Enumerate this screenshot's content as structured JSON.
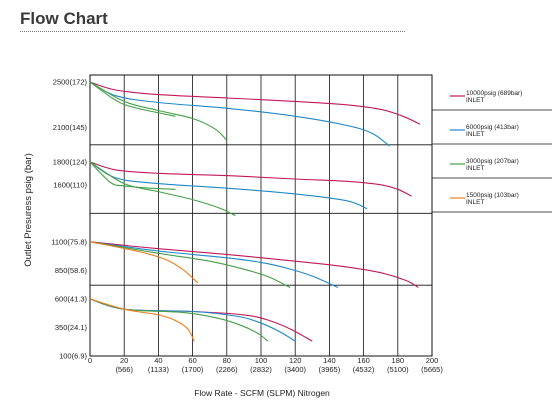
{
  "title": "Flow Chart",
  "chart_data": {
    "type": "line",
    "xlabel": "Flow Rate - SCFM (SLPM) Nitrogen",
    "ylabel": "Outlet Presuress psig (bar)",
    "xlim": [
      0,
      200
    ],
    "x_ticks": [
      {
        "v": 0,
        "label": "0",
        "sub": ""
      },
      {
        "v": 20,
        "label": "20",
        "sub": "(566)"
      },
      {
        "v": 40,
        "label": "40",
        "sub": "(1133)"
      },
      {
        "v": 60,
        "label": "60",
        "sub": "(1700)"
      },
      {
        "v": 80,
        "label": "80",
        "sub": "(2266)"
      },
      {
        "v": 100,
        "label": "100",
        "sub": "(2832)"
      },
      {
        "v": 120,
        "label": "120",
        "sub": "(3400)"
      },
      {
        "v": 140,
        "label": "140",
        "sub": "(3965)"
      },
      {
        "v": 160,
        "label": "160",
        "sub": "(4532)"
      },
      {
        "v": 180,
        "label": "180",
        "sub": "(5100)"
      },
      {
        "v": 200,
        "label": "200",
        "sub": "(5665)"
      }
    ],
    "y_ticks": [
      {
        "v": 2500,
        "label": "2500(172)"
      },
      {
        "v": 2100,
        "label": "2100(145)"
      },
      {
        "v": 1800,
        "label": "1800(124)"
      },
      {
        "v": 1600,
        "label": "1600(110)"
      },
      {
        "v": 1100,
        "label": "1100(75.8)"
      },
      {
        "v": 850,
        "label": "850(58.6)"
      },
      {
        "v": 600,
        "label": "600(41.3)"
      },
      {
        "v": 350,
        "label": "350(24.1)"
      },
      {
        "v": 100,
        "label": "100(6.9)"
      }
    ],
    "legend": [
      {
        "label": "10000psig (689bar)",
        "sub": "INLET",
        "color": "#c2185b"
      },
      {
        "label": "6000psig (413bar)",
        "sub": "INLET",
        "color": "#1e88c8"
      },
      {
        "label": "3000psig (207bar)",
        "sub": "INLET",
        "color": "#43a047"
      },
      {
        "label": "1500psig (103bar)",
        "sub": "INLET",
        "color": "#ef7d1a"
      }
    ],
    "series": [
      {
        "color": "#c2185b",
        "x": [
          0,
          15,
          40,
          80,
          120,
          150,
          170,
          183,
          193
        ],
        "y": [
          2500,
          2430,
          2390,
          2360,
          2330,
          2300,
          2260,
          2200,
          2130
        ]
      },
      {
        "color": "#1e88c8",
        "x": [
          0,
          15,
          40,
          80,
          120,
          150,
          165,
          175
        ],
        "y": [
          2500,
          2380,
          2320,
          2270,
          2200,
          2120,
          2050,
          1940
        ]
      },
      {
        "color": "#43a047",
        "x": [
          0,
          20,
          40,
          60,
          73,
          80
        ],
        "y": [
          2500,
          2330,
          2250,
          2180,
          2090,
          1990
        ]
      },
      {
        "color": "#43a047",
        "x": [
          0,
          15,
          25,
          40,
          50
        ],
        "y": [
          2500,
          2340,
          2280,
          2230,
          2200
        ]
      },
      {
        "color": "#c2185b",
        "x": [
          0,
          15,
          40,
          80,
          120,
          150,
          170,
          180,
          188
        ],
        "y": [
          1800,
          1730,
          1700,
          1680,
          1650,
          1630,
          1600,
          1560,
          1500
        ]
      },
      {
        "color": "#1e88c8",
        "x": [
          0,
          15,
          40,
          80,
          120,
          150,
          162
        ],
        "y": [
          1800,
          1660,
          1610,
          1570,
          1520,
          1460,
          1390
        ]
      },
      {
        "color": "#43a047",
        "x": [
          0,
          20,
          40,
          60,
          75,
          85
        ],
        "y": [
          1800,
          1610,
          1540,
          1470,
          1400,
          1330
        ]
      },
      {
        "color": "#43a047",
        "x": [
          0,
          12,
          20,
          35,
          50
        ],
        "y": [
          1800,
          1620,
          1590,
          1570,
          1560
        ]
      },
      {
        "color": "#c2185b",
        "x": [
          0,
          40,
          80,
          120,
          150,
          170,
          185,
          192
        ],
        "y": [
          1100,
          1040,
          990,
          930,
          880,
          830,
          760,
          700
        ]
      },
      {
        "color": "#1e88c8",
        "x": [
          0,
          40,
          80,
          100,
          115,
          130,
          145
        ],
        "y": [
          1100,
          1020,
          960,
          920,
          870,
          800,
          700
        ]
      },
      {
        "color": "#43a047",
        "x": [
          0,
          40,
          70,
          90,
          105,
          117
        ],
        "y": [
          1100,
          1000,
          930,
          860,
          790,
          700
        ]
      },
      {
        "color": "#ef7d1a",
        "x": [
          0,
          30,
          45,
          55,
          63
        ],
        "y": [
          1100,
          1010,
          940,
          850,
          740
        ]
      },
      {
        "color": "#c2185b",
        "x": [
          0,
          20,
          60,
          90,
          105,
          118,
          130
        ],
        "y": [
          600,
          510,
          490,
          460,
          410,
          330,
          230
        ]
      },
      {
        "color": "#1e88c8",
        "x": [
          0,
          20,
          60,
          85,
          98,
          110,
          120
        ],
        "y": [
          600,
          510,
          490,
          450,
          400,
          320,
          230
        ]
      },
      {
        "color": "#43a047",
        "x": [
          0,
          20,
          55,
          75,
          88,
          98,
          104
        ],
        "y": [
          600,
          510,
          480,
          430,
          370,
          300,
          230
        ]
      },
      {
        "color": "#ef7d1a",
        "x": [
          0,
          20,
          40,
          50,
          57,
          61
        ],
        "y": [
          600,
          510,
          460,
          410,
          340,
          230
        ]
      }
    ]
  }
}
